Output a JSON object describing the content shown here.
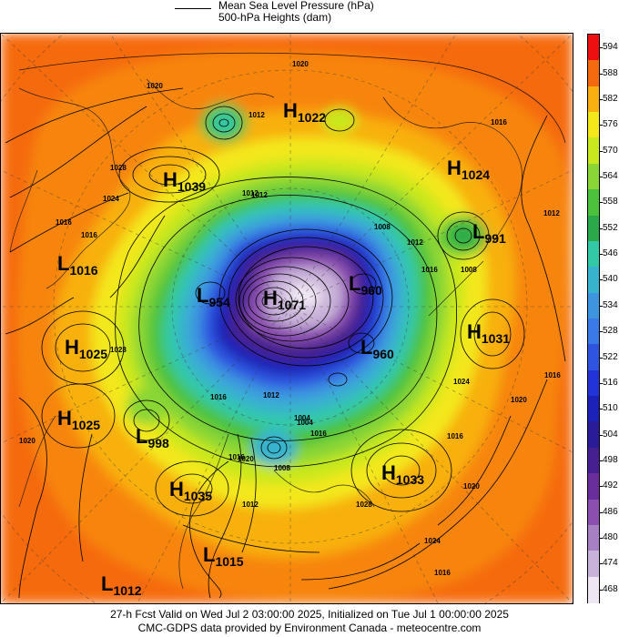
{
  "legend": {
    "line1": "Mean Sea Level Pressure (hPa)",
    "line2": "500-hPa Heights (dam)"
  },
  "colorbar": {
    "labels": [
      "594",
      "588",
      "582",
      "576",
      "570",
      "564",
      "558",
      "552",
      "546",
      "540",
      "534",
      "528",
      "522",
      "516",
      "510",
      "504",
      "498",
      "492",
      "486",
      "480",
      "474",
      "468"
    ],
    "colors": [
      "#ee1010",
      "#f56a0e",
      "#f8b010",
      "#f3e81a",
      "#c9e81e",
      "#8ad634",
      "#4cc23c",
      "#2aa84a",
      "#33c9a7",
      "#38b3ce",
      "#3d95e0",
      "#3a79e8",
      "#2f55e0",
      "#2234d8",
      "#1c22b8",
      "#2a1c98",
      "#47208f",
      "#6a2e9c",
      "#8b4fb0",
      "#a77fc3",
      "#c9b2d9",
      "#efe6f3"
    ]
  },
  "systems": [
    {
      "type": "H",
      "value": "1022"
    },
    {
      "type": "H",
      "value": "1039"
    },
    {
      "type": "H",
      "value": "1024"
    },
    {
      "type": "L",
      "value": "991"
    },
    {
      "type": "L",
      "value": "1016"
    },
    {
      "type": "L",
      "value": "954"
    },
    {
      "type": "H",
      "value": "1071"
    },
    {
      "type": "L",
      "value": "960"
    },
    {
      "type": "L",
      "value": "960"
    },
    {
      "type": "H",
      "value": "1031"
    },
    {
      "type": "H",
      "value": "1025"
    },
    {
      "type": "H",
      "value": "1025"
    },
    {
      "type": "L",
      "value": "998"
    },
    {
      "type": "H",
      "value": "1035"
    },
    {
      "type": "H",
      "value": "1033"
    },
    {
      "type": "L",
      "value": "1015"
    },
    {
      "type": "L",
      "value": "1012"
    }
  ],
  "isobar_labels": [
    "1020",
    "1020",
    "1012",
    "1012",
    "1028",
    "1024",
    "1016",
    "1016",
    "1012",
    "1008",
    "1012",
    "1016",
    "1008",
    "1016",
    "1012",
    "1024",
    "1020",
    "1016",
    "1016",
    "1004",
    "1016",
    "1008",
    "1016",
    "1012",
    "1020",
    "1024",
    "1016",
    "1016",
    "1028",
    "1020",
    "1012",
    "1004",
    "1020",
    "1028"
  ],
  "footer": {
    "line1": "27-h Fcst Valid on Wed Jul  2 03:00:00 2025, Initialized on Tue Jul  1 00:00:00 2025",
    "line2": "CMC-GDPS data provided by Environment Canada - meteocentre.com"
  }
}
